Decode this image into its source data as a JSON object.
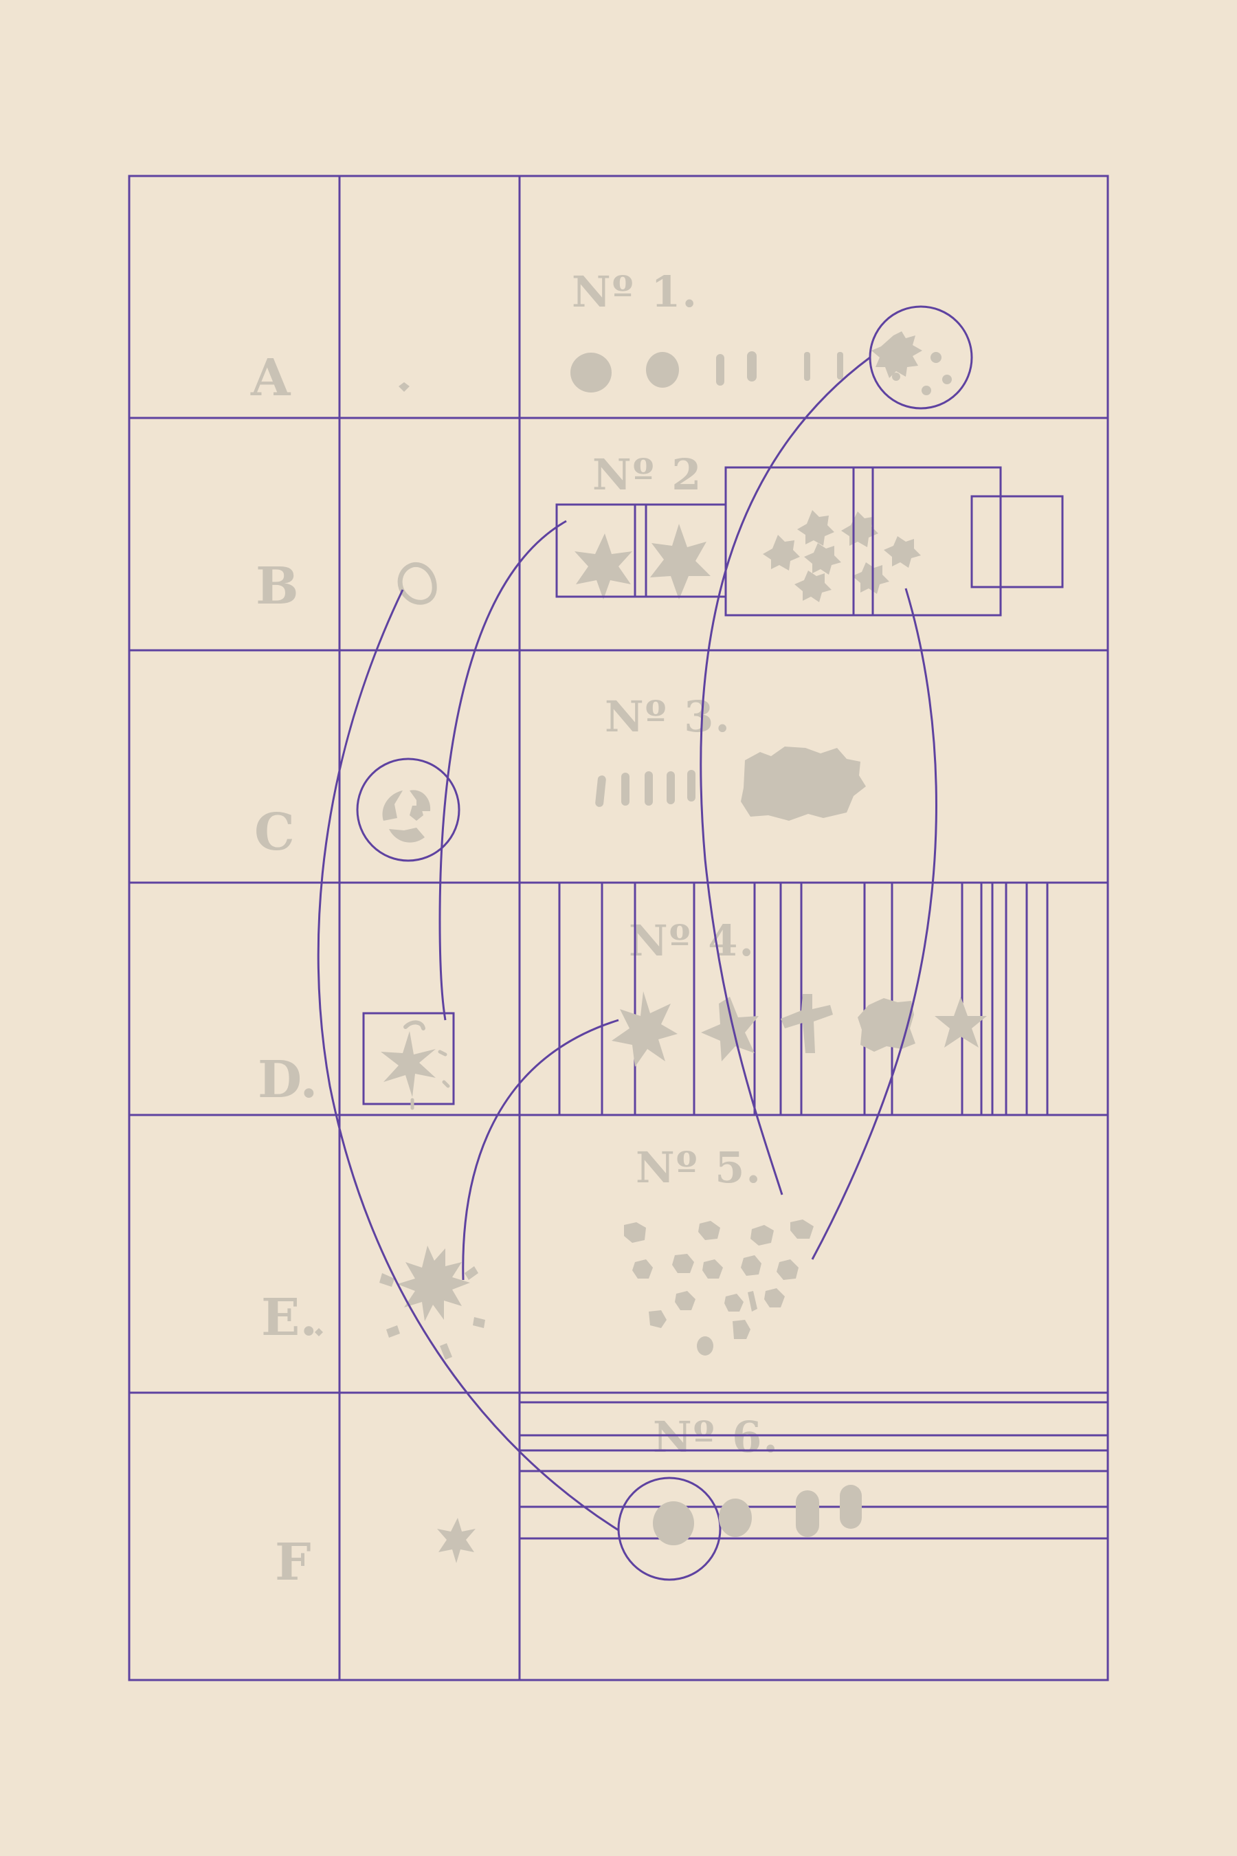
{
  "chart": {
    "row_labels": [
      "A",
      "B",
      "C",
      "D.",
      "E.",
      "F"
    ],
    "panel_titles": [
      "Nº 1.",
      "Nº 2",
      "Nº 3.",
      "Nº 4.",
      "Nº 5.",
      "Nº 6."
    ]
  },
  "palette": {
    "background": "#F0E4D2",
    "line": "#5E42A0",
    "ink": "#C9C2B5"
  },
  "icons": [
    "oval-blot",
    "tick-mark",
    "star-glyph",
    "cell-cluster",
    "cross-glyph",
    "spiky-blob",
    "sparkle-glyph",
    "ring-glyph",
    "marbled-orb"
  ]
}
